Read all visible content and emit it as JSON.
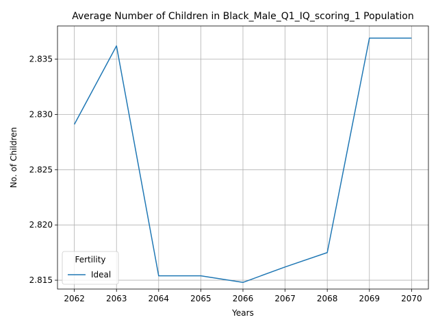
{
  "chart_data": {
    "type": "line",
    "title": "Average Number of Children in Black_Male_Q1_IQ_scoring_1 Population",
    "xlabel": "Years",
    "ylabel": "No. of Children",
    "x": [
      2062,
      2063,
      2064,
      2065,
      2066,
      2067,
      2068,
      2069,
      2070
    ],
    "xticks": [
      "2062",
      "2063",
      "2064",
      "2065",
      "2066",
      "2067",
      "2068",
      "2069",
      "2070"
    ],
    "yticks": [
      "2.815",
      "2.820",
      "2.825",
      "2.830",
      "2.835"
    ],
    "ylim": [
      2.8142,
      2.838
    ],
    "xlim": [
      2061.6,
      2070.4
    ],
    "grid": true,
    "series": [
      {
        "name": "Ideal",
        "color": "#1f77b4",
        "values": [
          2.8291,
          2.8362,
          2.8154,
          2.8154,
          2.8148,
          2.8162,
          2.8175,
          2.8369,
          2.8369
        ]
      }
    ],
    "legend": {
      "title": "Fertility",
      "placement": "lower-left"
    }
  }
}
